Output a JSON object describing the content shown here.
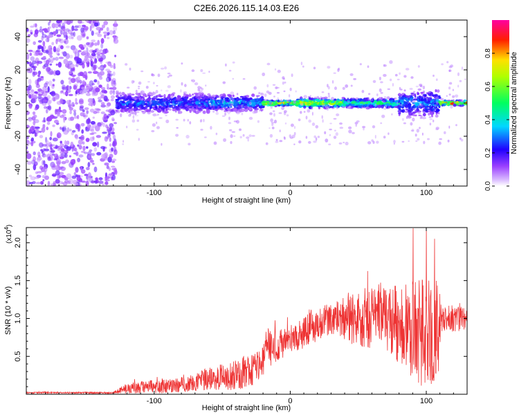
{
  "title": "C2E6.2026.115.14.03.E26",
  "chart_data": [
    {
      "type": "heatmap",
      "name": "spectrogram",
      "xlabel": "Height of straight line (km)",
      "ylabel": "Frequency (Hz)",
      "xlim": [
        -194,
        130
      ],
      "ylim": [
        -50,
        50
      ],
      "xticks": [
        -100,
        0,
        100
      ],
      "xtick_labels": [
        "-100",
        "0",
        "100"
      ],
      "yticks": [
        -40,
        -20,
        0,
        20,
        40
      ],
      "ytick_labels": [
        "-40",
        "-20",
        "0",
        "20",
        "40"
      ],
      "noise_region_x": [
        -194,
        -128
      ],
      "band_segments": [
        {
          "x0": -128,
          "x1": -60,
          "halfwidth_hz": 9,
          "peak_amplitude": 0.35
        },
        {
          "x0": -60,
          "x1": -20,
          "halfwidth_hz": 7,
          "peak_amplitude": 0.45
        },
        {
          "x0": -20,
          "x1": 5,
          "halfwidth_hz": 2,
          "peak_amplitude": 0.95
        },
        {
          "x0": 5,
          "x1": 40,
          "halfwidth_hz": 4,
          "peak_amplitude": 0.85
        },
        {
          "x0": 40,
          "x1": 80,
          "halfwidth_hz": 4,
          "peak_amplitude": 0.6
        },
        {
          "x0": 80,
          "x1": 110,
          "halfwidth_hz": 12,
          "peak_amplitude": 0.4
        },
        {
          "x0": 110,
          "x1": 130,
          "halfwidth_hz": 2,
          "peak_amplitude": 0.95
        }
      ],
      "colorbar": {
        "label": "Normalized spectral amplitude",
        "range": [
          0,
          1
        ],
        "ticks": [
          0.0,
          0.2,
          0.4,
          0.6,
          0.8
        ],
        "tick_labels": [
          "0.0",
          "0.2",
          "0.4",
          "0.6",
          "0.8"
        ],
        "colors": [
          "#ffffff",
          "#c8a0ff",
          "#8000ff",
          "#0000ff",
          "#00ffff",
          "#00ff00",
          "#ffff00",
          "#ff0000",
          "#ff00a0"
        ]
      }
    },
    {
      "type": "line",
      "name": "snr",
      "xlabel": "Height of straight line (km)",
      "ylabel": "SNR (10 * v/v)",
      "yunit": "(x10",
      "yunit_exp": "4",
      "yunit_close": ")",
      "xlim": [
        -194,
        130
      ],
      "ylim": [
        0,
        2.2
      ],
      "xticks": [
        -100,
        0,
        100
      ],
      "xtick_labels": [
        "-100",
        "0",
        "100"
      ],
      "yticks": [
        0.5,
        1.0,
        1.5,
        2.0
      ],
      "ytick_labels": [
        "0.5",
        "1.0",
        "1.5",
        "2.0"
      ],
      "color": "#ee3333",
      "envelope": [
        {
          "x": -194,
          "base": 0.02,
          "spread": 0.01
        },
        {
          "x": -130,
          "base": 0.02,
          "spread": 0.01
        },
        {
          "x": -120,
          "base": 0.08,
          "spread": 0.08
        },
        {
          "x": -80,
          "base": 0.12,
          "spread": 0.1
        },
        {
          "x": -60,
          "base": 0.2,
          "spread": 0.15
        },
        {
          "x": -40,
          "base": 0.25,
          "spread": 0.2
        },
        {
          "x": -20,
          "base": 0.4,
          "spread": 0.25
        },
        {
          "x": -18,
          "base": 0.6,
          "spread": 0.3
        },
        {
          "x": 0,
          "base": 0.7,
          "spread": 0.15
        },
        {
          "x": 10,
          "base": 0.85,
          "spread": 0.25
        },
        {
          "x": 30,
          "base": 1.0,
          "spread": 0.2
        },
        {
          "x": 50,
          "base": 1.0,
          "spread": 0.4
        },
        {
          "x": 70,
          "base": 1.0,
          "spread": 0.4
        },
        {
          "x": 85,
          "base": 0.9,
          "spread": 0.6
        },
        {
          "x": 100,
          "base": 0.8,
          "spread": 0.75
        },
        {
          "x": 108,
          "base": 0.8,
          "spread": 0.7
        },
        {
          "x": 112,
          "base": 1.0,
          "spread": 0.2
        },
        {
          "x": 130,
          "base": 1.0,
          "spread": 0.15
        }
      ],
      "peak_value": 2.2,
      "peak_x": 100
    }
  ]
}
